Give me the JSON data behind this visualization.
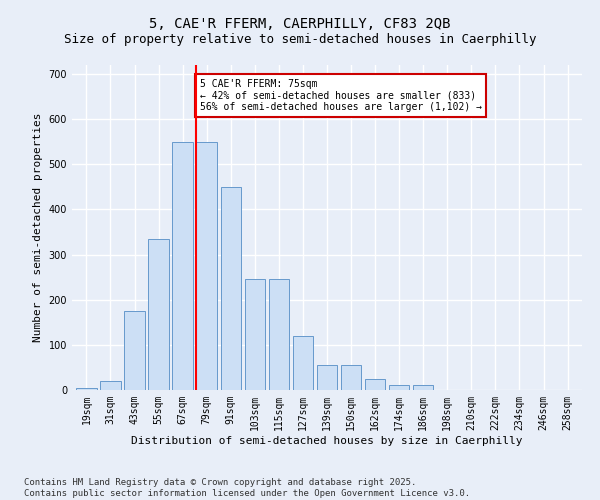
{
  "title1": "5, CAE'R FFERM, CAERPHILLY, CF83 2QB",
  "title2": "Size of property relative to semi-detached houses in Caerphilly",
  "xlabel": "Distribution of semi-detached houses by size in Caerphilly",
  "ylabel": "Number of semi-detached properties",
  "categories": [
    "19sqm",
    "31sqm",
    "43sqm",
    "55sqm",
    "67sqm",
    "79sqm",
    "91sqm",
    "103sqm",
    "115sqm",
    "127sqm",
    "139sqm",
    "150sqm",
    "162sqm",
    "174sqm",
    "186sqm",
    "198sqm",
    "210sqm",
    "222sqm",
    "234sqm",
    "246sqm",
    "258sqm"
  ],
  "bar_values": [
    5,
    20,
    175,
    335,
    550,
    550,
    450,
    245,
    245,
    120,
    55,
    55,
    25,
    12,
    12,
    0,
    0,
    0,
    0,
    0,
    0
  ],
  "bar_color": "#ccdff5",
  "bar_edge_color": "#6699cc",
  "annotation_text": "5 CAE'R FFERM: 75sqm\n← 42% of semi-detached houses are smaller (833)\n56% of semi-detached houses are larger (1,102) →",
  "annotation_box_color": "#ffffff",
  "annotation_box_edge_color": "#cc0000",
  "ylim": [
    0,
    720
  ],
  "yticks": [
    0,
    100,
    200,
    300,
    400,
    500,
    600,
    700
  ],
  "footer_text": "Contains HM Land Registry data © Crown copyright and database right 2025.\nContains public sector information licensed under the Open Government Licence v3.0.",
  "bg_color": "#e8eef8",
  "plot_bg_color": "#e8eef8",
  "grid_color": "#ffffff",
  "title1_fontsize": 10,
  "title2_fontsize": 9,
  "tick_fontsize": 7,
  "label_fontsize": 8,
  "footer_fontsize": 6.5
}
